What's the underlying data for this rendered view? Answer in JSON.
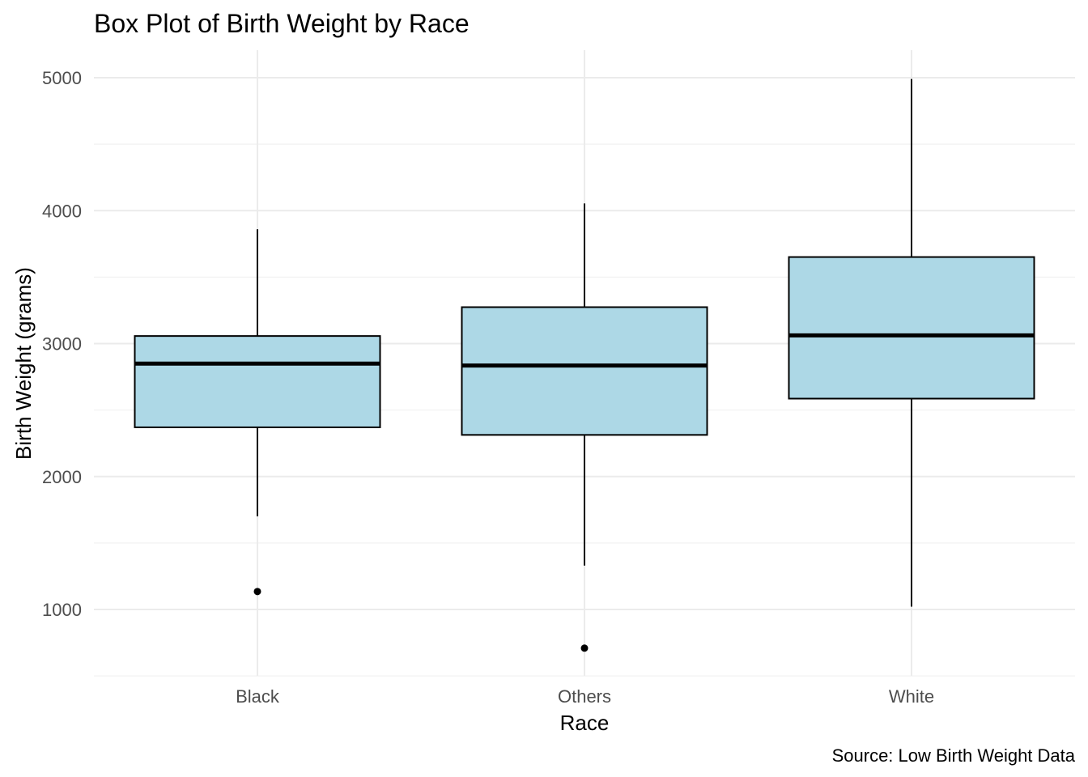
{
  "chart_data": {
    "type": "box",
    "title": "Box Plot of Birth Weight by Race",
    "xlabel": "Race",
    "ylabel": "Birth Weight (grams)",
    "caption": "Source: Low Birth Weight Data",
    "ylim": [
      500,
      5200
    ],
    "yticks": [
      1000,
      2000,
      3000,
      4000,
      5000
    ],
    "yminor": [
      1500,
      2500,
      3500,
      4500
    ],
    "grid": true,
    "box_fill": "#add8e6",
    "categories": [
      "Black",
      "Others",
      "White"
    ],
    "boxes": [
      {
        "category": "Black",
        "min": 1701,
        "q1": 2370,
        "median": 2849,
        "q3": 3057,
        "max": 3860,
        "outliers": [
          1135
        ]
      },
      {
        "category": "Others",
        "min": 1330,
        "q1": 2313,
        "median": 2835,
        "q3": 3274,
        "max": 4054,
        "outliers": [
          709
        ]
      },
      {
        "category": "White",
        "min": 1021,
        "q1": 2586,
        "median": 3062,
        "q3": 3651,
        "max": 4990,
        "outliers": []
      }
    ]
  }
}
